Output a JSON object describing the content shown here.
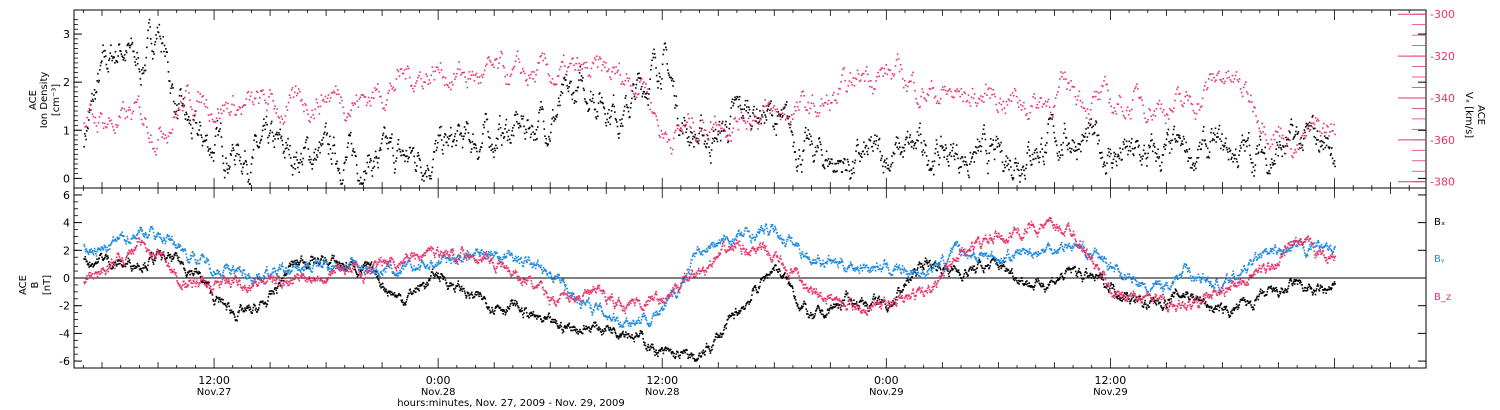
{
  "colors": {
    "black": "#000000",
    "pink": "#e8336a",
    "blue": "#1f8ae0",
    "axis": "#000000"
  },
  "chart_data": [
    {
      "type": "scatter",
      "panel": "top",
      "ylabel_left": [
        "ACE",
        "Ion Density",
        "[cm⁻³]"
      ],
      "ylabel_right": [
        "ACE",
        "Vₓ [km/s]"
      ],
      "left_ylim": [
        -0.2,
        3.5
      ],
      "left_ticks": [
        0,
        1,
        2,
        3
      ],
      "right_ylim": [
        -383,
        -298
      ],
      "right_ticks": [
        -300,
        -320,
        -340,
        -360,
        -380
      ],
      "x_range_hours": [
        4.5,
        76.9
      ],
      "series": [
        {
          "color": "black",
          "axis": "left",
          "x_hours": [
            5,
            6,
            7,
            8,
            9,
            10,
            11,
            12,
            13,
            14,
            15,
            16,
            18,
            20,
            22,
            24,
            26,
            28,
            30,
            32,
            34,
            36,
            37,
            38,
            39,
            40,
            41,
            42,
            43,
            44,
            45,
            46,
            47,
            48,
            50,
            52,
            54,
            56,
            58,
            60,
            62,
            64,
            66,
            68,
            70,
            71,
            72
          ],
          "values": [
            0.9,
            2.2,
            2.8,
            2.3,
            3.2,
            1.4,
            0.8,
            0.7,
            0.6,
            0.5,
            0.6,
            0.5,
            0.5,
            0.4,
            0.4,
            0.6,
            0.8,
            1.0,
            1.3,
            1.9,
            1.4,
            2.6,
            1.2,
            0.8,
            0.9,
            1.3,
            1.5,
            1.2,
            0.8,
            0.5,
            0.4,
            0.3,
            0.4,
            0.5,
            0.6,
            0.5,
            0.4,
            0.7,
            0.9,
            0.5,
            0.4,
            0.5,
            0.6,
            0.5,
            0.7,
            0.8,
            0.7
          ]
        },
        {
          "color": "pink",
          "axis": "right",
          "x_hours": [
            5,
            6,
            7,
            8,
            9,
            10,
            11,
            12,
            13,
            14,
            15,
            16,
            18,
            20,
            22,
            24,
            26,
            28,
            30,
            32,
            34,
            35,
            36,
            37,
            38,
            39,
            40,
            41,
            42,
            43,
            44,
            45,
            46,
            47,
            48,
            50,
            52,
            54,
            56,
            58,
            60,
            62,
            64,
            66,
            68,
            70,
            71,
            72
          ],
          "values": [
            -355,
            -350,
            -352,
            -349,
            -353,
            -343,
            -340,
            -341,
            -343,
            -345,
            -344,
            -346,
            -337,
            -340,
            -330,
            -326,
            -330,
            -331,
            -330,
            -330,
            -330,
            -329,
            -357,
            -355,
            -352,
            -348,
            -348,
            -345,
            -350,
            -346,
            -346,
            -343,
            -338,
            -325,
            -328,
            -335,
            -340,
            -338,
            -342,
            -335,
            -345,
            -340,
            -345,
            -328,
            -345,
            -362,
            -358,
            -355
          ]
        }
      ]
    },
    {
      "type": "scatter",
      "panel": "bottom",
      "ylabel": [
        "ACE",
        "B",
        "[nT]"
      ],
      "ylim": [
        -6.5,
        6.5
      ],
      "yticks": [
        6,
        4,
        2,
        0,
        -2,
        -4,
        -6
      ],
      "zero_line": true,
      "legend": [
        {
          "label": "Bₓ",
          "color": "black"
        },
        {
          "label": "Bᵧ",
          "color": "blue"
        },
        {
          "label": "B_z",
          "color": "pink"
        }
      ],
      "x_range_hours": [
        4.5,
        76.9
      ],
      "series": [
        {
          "name": "Bₓ",
          "color": "black",
          "x_hours": [
            5,
            6,
            7,
            8,
            9,
            10,
            11,
            12,
            13,
            14,
            15,
            16,
            17,
            18,
            19,
            20,
            22,
            24,
            26,
            28,
            30,
            32,
            34,
            36,
            38,
            40,
            42,
            44,
            46,
            48,
            50,
            52,
            54,
            56,
            58,
            60,
            62,
            64,
            66,
            68,
            70,
            71,
            72
          ],
          "values": [
            1.2,
            1.5,
            1.0,
            1.3,
            1.5,
            1.2,
            0.5,
            -1.5,
            -2.4,
            -2.5,
            -1.5,
            0.8,
            1.5,
            1.2,
            1.0,
            0.8,
            -1.5,
            0.3,
            -1.5,
            -2.0,
            -3.5,
            -3.5,
            -3.5,
            -5.5,
            -5.8,
            -2.5,
            1.0,
            -3.0,
            -1.5,
            -2.0,
            1.2,
            0.5,
            1.0,
            -0.5,
            0.5,
            -0.5,
            -2.0,
            -1.0,
            -2.5,
            -1.5,
            -0.5,
            -1.0,
            -0.8
          ]
        },
        {
          "name": "Bᵧ",
          "color": "blue",
          "x_hours": [
            5,
            6,
            7,
            8,
            9,
            10,
            11,
            12,
            13,
            14,
            15,
            16,
            17,
            18,
            19,
            20,
            22,
            24,
            26,
            28,
            30,
            32,
            34,
            36,
            38,
            40,
            42,
            44,
            46,
            48,
            50,
            52,
            54,
            56,
            58,
            60,
            62,
            64,
            66,
            68,
            70,
            71,
            72
          ],
          "values": [
            2.2,
            2.0,
            2.8,
            3.5,
            3.2,
            2.5,
            1.5,
            0.8,
            0.5,
            0.2,
            0.5,
            0.5,
            0.8,
            1.0,
            1.0,
            0.8,
            0.5,
            1.2,
            2.0,
            1.5,
            0.5,
            -2.0,
            -3.0,
            -2.5,
            2.0,
            3.0,
            3.5,
            1.5,
            1.0,
            0.8,
            0.5,
            2.0,
            1.5,
            2.0,
            2.5,
            1.0,
            -1.0,
            0.5,
            -0.5,
            1.5,
            2.0,
            2.5,
            2.0
          ]
        },
        {
          "name": "B_z",
          "color": "pink",
          "x_hours": [
            5,
            6,
            7,
            8,
            9,
            10,
            11,
            12,
            13,
            14,
            15,
            16,
            17,
            18,
            19,
            20,
            22,
            24,
            26,
            28,
            30,
            32,
            34,
            36,
            38,
            40,
            42,
            44,
            46,
            48,
            50,
            52,
            54,
            56,
            58,
            60,
            62,
            64,
            66,
            68,
            70,
            71,
            72
          ],
          "values": [
            -0.3,
            0.5,
            1.5,
            2.5,
            2.0,
            0.0,
            -0.5,
            -0.5,
            -0.3,
            -0.2,
            -0.2,
            0.0,
            0.2,
            0.5,
            0.8,
            0.5,
            1.5,
            2.0,
            1.8,
            0.5,
            -1.5,
            -1.0,
            -1.8,
            -1.5,
            0.5,
            2.5,
            1.5,
            -1.0,
            -1.8,
            -2.0,
            -1.0,
            2.0,
            3.0,
            3.8,
            3.5,
            -1.0,
            -1.5,
            -2.0,
            -1.0,
            0.5,
            2.5,
            2.0,
            1.5
          ]
        }
      ]
    }
  ],
  "x_axis": {
    "ticks": [
      {
        "time": "12:00",
        "date": "Nov.27",
        "hour": 12
      },
      {
        "time": "0:00",
        "date": "Nov.28",
        "hour": 24
      },
      {
        "time": "12:00",
        "date": "Nov.28",
        "hour": 36
      },
      {
        "time": "0:00",
        "date": "Nov.29",
        "hour": 48
      },
      {
        "time": "12:00",
        "date": "Nov.29",
        "hour": 60
      }
    ],
    "xlabel": "hours:minutes, Nov. 27, 2009 - Nov. 29, 2009"
  }
}
